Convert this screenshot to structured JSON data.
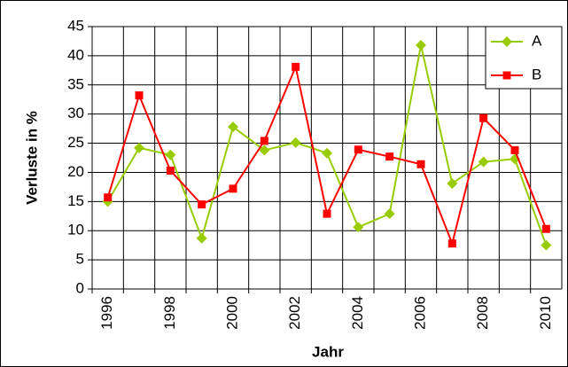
{
  "chart_data": {
    "type": "line",
    "categories": [
      "1996",
      null,
      "1998",
      null,
      "2000",
      null,
      "2002",
      null,
      "2004",
      null,
      "2006",
      null,
      "2008",
      null,
      "2010"
    ],
    "series": [
      {
        "name": "A",
        "color": "#99cc00",
        "marker": "diamond",
        "values": [
          15,
          24.2,
          23,
          8.7,
          27.8,
          23.8,
          25.1,
          23.3,
          10.6,
          12.9,
          41.8,
          18.1,
          21.8,
          22.3,
          7.5
        ]
      },
      {
        "name": "B",
        "color": "#ff0000",
        "marker": "square",
        "values": [
          15.7,
          33.2,
          20.3,
          14.5,
          17.2,
          25.4,
          38.1,
          12.9,
          23.9,
          22.7,
          21.4,
          7.8,
          29.3,
          23.8,
          10.3
        ]
      }
    ],
    "x_label": "Jahr",
    "y_label": "Verluste in %",
    "ylim": [
      0,
      45
    ],
    "yticks": [
      0,
      5,
      10,
      15,
      20,
      25,
      30,
      35,
      40,
      45
    ],
    "grid": true,
    "legend": "top-right"
  }
}
